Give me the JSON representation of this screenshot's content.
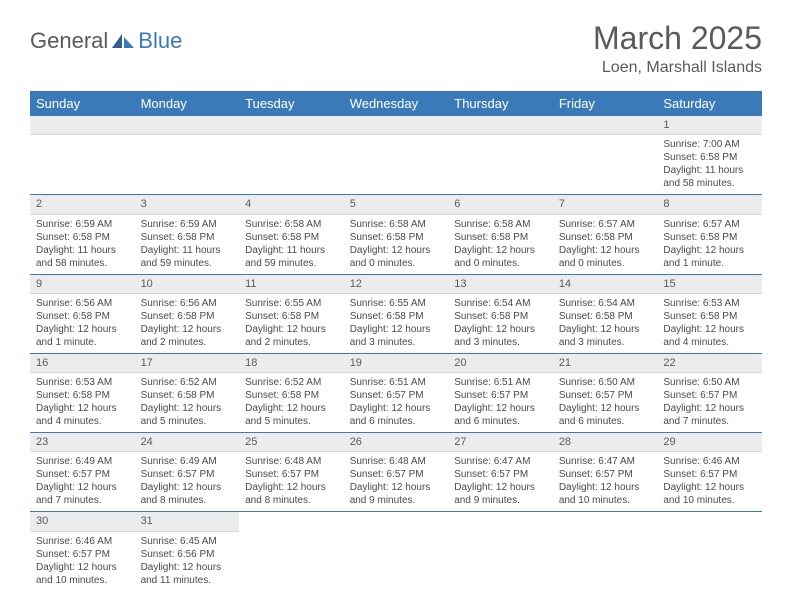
{
  "logo": {
    "general": "General",
    "blue": "Blue"
  },
  "title": "March 2025",
  "location": "Loen, Marshall Islands",
  "colors": {
    "header_bg": "#3a7ab8",
    "header_text": "#ffffff",
    "day_number_bg": "#ececec",
    "border": "#3a7ab8",
    "text": "#4a4a4a"
  },
  "weekdays": [
    "Sunday",
    "Monday",
    "Tuesday",
    "Wednesday",
    "Thursday",
    "Friday",
    "Saturday"
  ],
  "weeks": [
    [
      null,
      null,
      null,
      null,
      null,
      null,
      {
        "n": "1",
        "sr": "Sunrise: 7:00 AM",
        "ss": "Sunset: 6:58 PM",
        "dl": "Daylight: 11 hours and 58 minutes."
      }
    ],
    [
      {
        "n": "2",
        "sr": "Sunrise: 6:59 AM",
        "ss": "Sunset: 6:58 PM",
        "dl": "Daylight: 11 hours and 58 minutes."
      },
      {
        "n": "3",
        "sr": "Sunrise: 6:59 AM",
        "ss": "Sunset: 6:58 PM",
        "dl": "Daylight: 11 hours and 59 minutes."
      },
      {
        "n": "4",
        "sr": "Sunrise: 6:58 AM",
        "ss": "Sunset: 6:58 PM",
        "dl": "Daylight: 11 hours and 59 minutes."
      },
      {
        "n": "5",
        "sr": "Sunrise: 6:58 AM",
        "ss": "Sunset: 6:58 PM",
        "dl": "Daylight: 12 hours and 0 minutes."
      },
      {
        "n": "6",
        "sr": "Sunrise: 6:58 AM",
        "ss": "Sunset: 6:58 PM",
        "dl": "Daylight: 12 hours and 0 minutes."
      },
      {
        "n": "7",
        "sr": "Sunrise: 6:57 AM",
        "ss": "Sunset: 6:58 PM",
        "dl": "Daylight: 12 hours and 0 minutes."
      },
      {
        "n": "8",
        "sr": "Sunrise: 6:57 AM",
        "ss": "Sunset: 6:58 PM",
        "dl": "Daylight: 12 hours and 1 minute."
      }
    ],
    [
      {
        "n": "9",
        "sr": "Sunrise: 6:56 AM",
        "ss": "Sunset: 6:58 PM",
        "dl": "Daylight: 12 hours and 1 minute."
      },
      {
        "n": "10",
        "sr": "Sunrise: 6:56 AM",
        "ss": "Sunset: 6:58 PM",
        "dl": "Daylight: 12 hours and 2 minutes."
      },
      {
        "n": "11",
        "sr": "Sunrise: 6:55 AM",
        "ss": "Sunset: 6:58 PM",
        "dl": "Daylight: 12 hours and 2 minutes."
      },
      {
        "n": "12",
        "sr": "Sunrise: 6:55 AM",
        "ss": "Sunset: 6:58 PM",
        "dl": "Daylight: 12 hours and 3 minutes."
      },
      {
        "n": "13",
        "sr": "Sunrise: 6:54 AM",
        "ss": "Sunset: 6:58 PM",
        "dl": "Daylight: 12 hours and 3 minutes."
      },
      {
        "n": "14",
        "sr": "Sunrise: 6:54 AM",
        "ss": "Sunset: 6:58 PM",
        "dl": "Daylight: 12 hours and 3 minutes."
      },
      {
        "n": "15",
        "sr": "Sunrise: 6:53 AM",
        "ss": "Sunset: 6:58 PM",
        "dl": "Daylight: 12 hours and 4 minutes."
      }
    ],
    [
      {
        "n": "16",
        "sr": "Sunrise: 6:53 AM",
        "ss": "Sunset: 6:58 PM",
        "dl": "Daylight: 12 hours and 4 minutes."
      },
      {
        "n": "17",
        "sr": "Sunrise: 6:52 AM",
        "ss": "Sunset: 6:58 PM",
        "dl": "Daylight: 12 hours and 5 minutes."
      },
      {
        "n": "18",
        "sr": "Sunrise: 6:52 AM",
        "ss": "Sunset: 6:58 PM",
        "dl": "Daylight: 12 hours and 5 minutes."
      },
      {
        "n": "19",
        "sr": "Sunrise: 6:51 AM",
        "ss": "Sunset: 6:57 PM",
        "dl": "Daylight: 12 hours and 6 minutes."
      },
      {
        "n": "20",
        "sr": "Sunrise: 6:51 AM",
        "ss": "Sunset: 6:57 PM",
        "dl": "Daylight: 12 hours and 6 minutes."
      },
      {
        "n": "21",
        "sr": "Sunrise: 6:50 AM",
        "ss": "Sunset: 6:57 PM",
        "dl": "Daylight: 12 hours and 6 minutes."
      },
      {
        "n": "22",
        "sr": "Sunrise: 6:50 AM",
        "ss": "Sunset: 6:57 PM",
        "dl": "Daylight: 12 hours and 7 minutes."
      }
    ],
    [
      {
        "n": "23",
        "sr": "Sunrise: 6:49 AM",
        "ss": "Sunset: 6:57 PM",
        "dl": "Daylight: 12 hours and 7 minutes."
      },
      {
        "n": "24",
        "sr": "Sunrise: 6:49 AM",
        "ss": "Sunset: 6:57 PM",
        "dl": "Daylight: 12 hours and 8 minutes."
      },
      {
        "n": "25",
        "sr": "Sunrise: 6:48 AM",
        "ss": "Sunset: 6:57 PM",
        "dl": "Daylight: 12 hours and 8 minutes."
      },
      {
        "n": "26",
        "sr": "Sunrise: 6:48 AM",
        "ss": "Sunset: 6:57 PM",
        "dl": "Daylight: 12 hours and 9 minutes."
      },
      {
        "n": "27",
        "sr": "Sunrise: 6:47 AM",
        "ss": "Sunset: 6:57 PM",
        "dl": "Daylight: 12 hours and 9 minutes."
      },
      {
        "n": "28",
        "sr": "Sunrise: 6:47 AM",
        "ss": "Sunset: 6:57 PM",
        "dl": "Daylight: 12 hours and 10 minutes."
      },
      {
        "n": "29",
        "sr": "Sunrise: 6:46 AM",
        "ss": "Sunset: 6:57 PM",
        "dl": "Daylight: 12 hours and 10 minutes."
      }
    ],
    [
      {
        "n": "30",
        "sr": "Sunrise: 6:46 AM",
        "ss": "Sunset: 6:57 PM",
        "dl": "Daylight: 12 hours and 10 minutes."
      },
      {
        "n": "31",
        "sr": "Sunrise: 6:45 AM",
        "ss": "Sunset: 6:56 PM",
        "dl": "Daylight: 12 hours and 11 minutes."
      },
      null,
      null,
      null,
      null,
      null
    ]
  ]
}
